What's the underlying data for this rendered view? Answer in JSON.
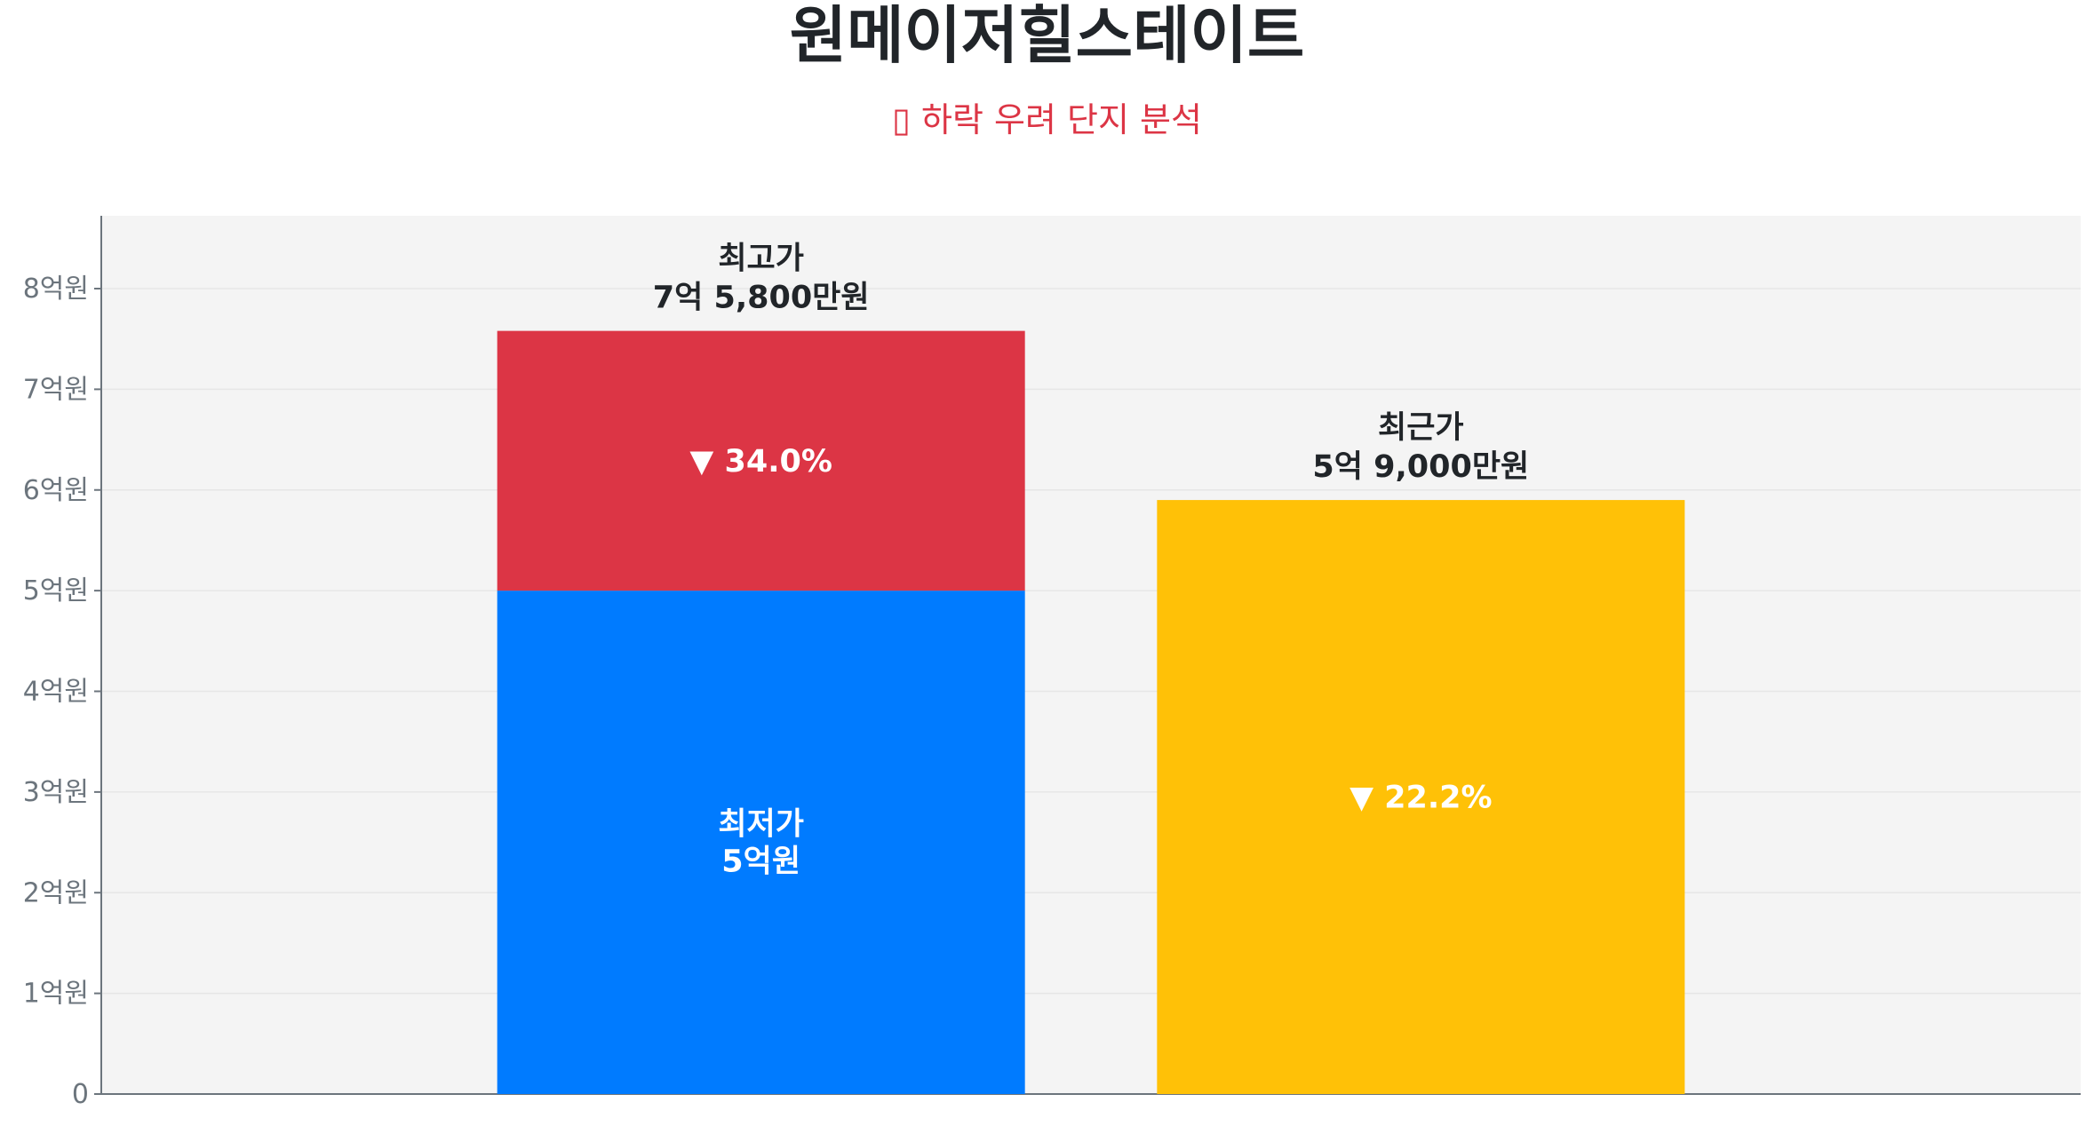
{
  "title": "원메이저힐스테이트",
  "subtitle": "▯ 하락 우려 단지 분석",
  "colors": {
    "high": "#dc3545",
    "low": "#007bff",
    "recent": "#ffc107",
    "plot_bg": "#f4f4f4",
    "axis": "#6c757d",
    "text": "#212529"
  },
  "chart_data": {
    "type": "bar",
    "stacked": true,
    "title": "원메이저힐스테이트",
    "subtitle": "▯ 하락 우려 단지 분석",
    "ylim": [
      0,
      8.7
    ],
    "yticks": [
      0,
      1,
      2,
      3,
      4,
      5,
      6,
      7,
      8
    ],
    "ytick_labels": [
      "0",
      "1억원",
      "2억원",
      "3억원",
      "4억원",
      "5억원",
      "6억원",
      "7억원",
      "8억원"
    ],
    "grid": true,
    "bars": [
      {
        "segments": [
          {
            "name": "최저가",
            "value": 5.0,
            "color": "#007bff",
            "label_lines": [
              "최저가",
              "5억원"
            ]
          },
          {
            "name": "최고가",
            "value": 2.58,
            "color": "#dc3545",
            "label_lines": [
              "▼ 34.0%"
            ]
          }
        ],
        "top_label_lines": [
          "최고가",
          "7억 5,800만원"
        ]
      },
      {
        "segments": [
          {
            "name": "최근가",
            "value": 5.9,
            "color": "#ffc107",
            "label_lines": [
              "▼ 22.2%"
            ]
          }
        ],
        "top_label_lines": [
          "최근가",
          "5억 9,000만원"
        ]
      }
    ]
  }
}
